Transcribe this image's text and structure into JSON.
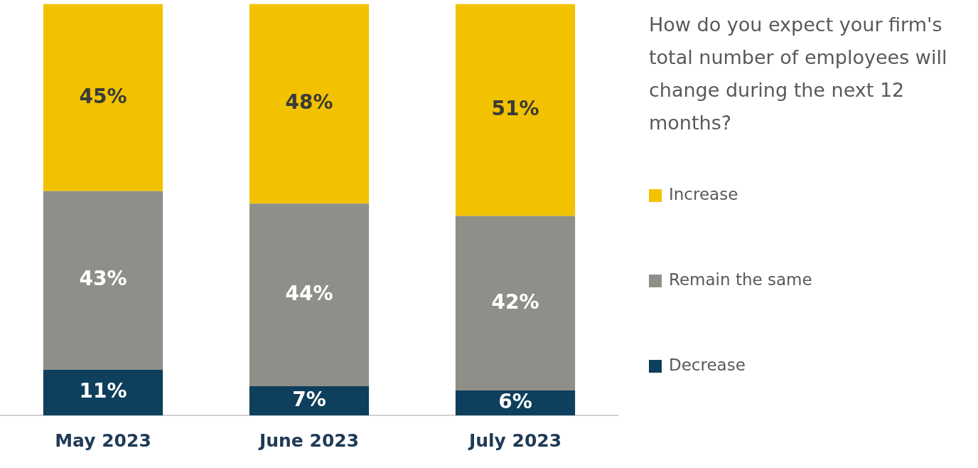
{
  "chart_data": {
    "type": "bar",
    "stacked": true,
    "legend_title": "How do you expect your firm's total number of employees will change during the next 12 months?",
    "categories": [
      "May 2023",
      "June 2023",
      "July 2023"
    ],
    "series": [
      {
        "name": "Decrease",
        "color": "#0e3f5c",
        "values": [
          11,
          7,
          6
        ],
        "value_labels": [
          "11%",
          "7%",
          "6%"
        ]
      },
      {
        "name": "Remain the same",
        "color": "#8f8f89",
        "values": [
          43,
          44,
          42
        ],
        "value_labels": [
          "43%",
          "44%",
          "42%"
        ]
      },
      {
        "name": "Increase",
        "color": "#f2c200",
        "values": [
          45,
          48,
          51
        ],
        "value_labels": [
          "45%",
          "48%",
          "51%"
        ]
      }
    ],
    "legend": "right",
    "grid": false
  }
}
